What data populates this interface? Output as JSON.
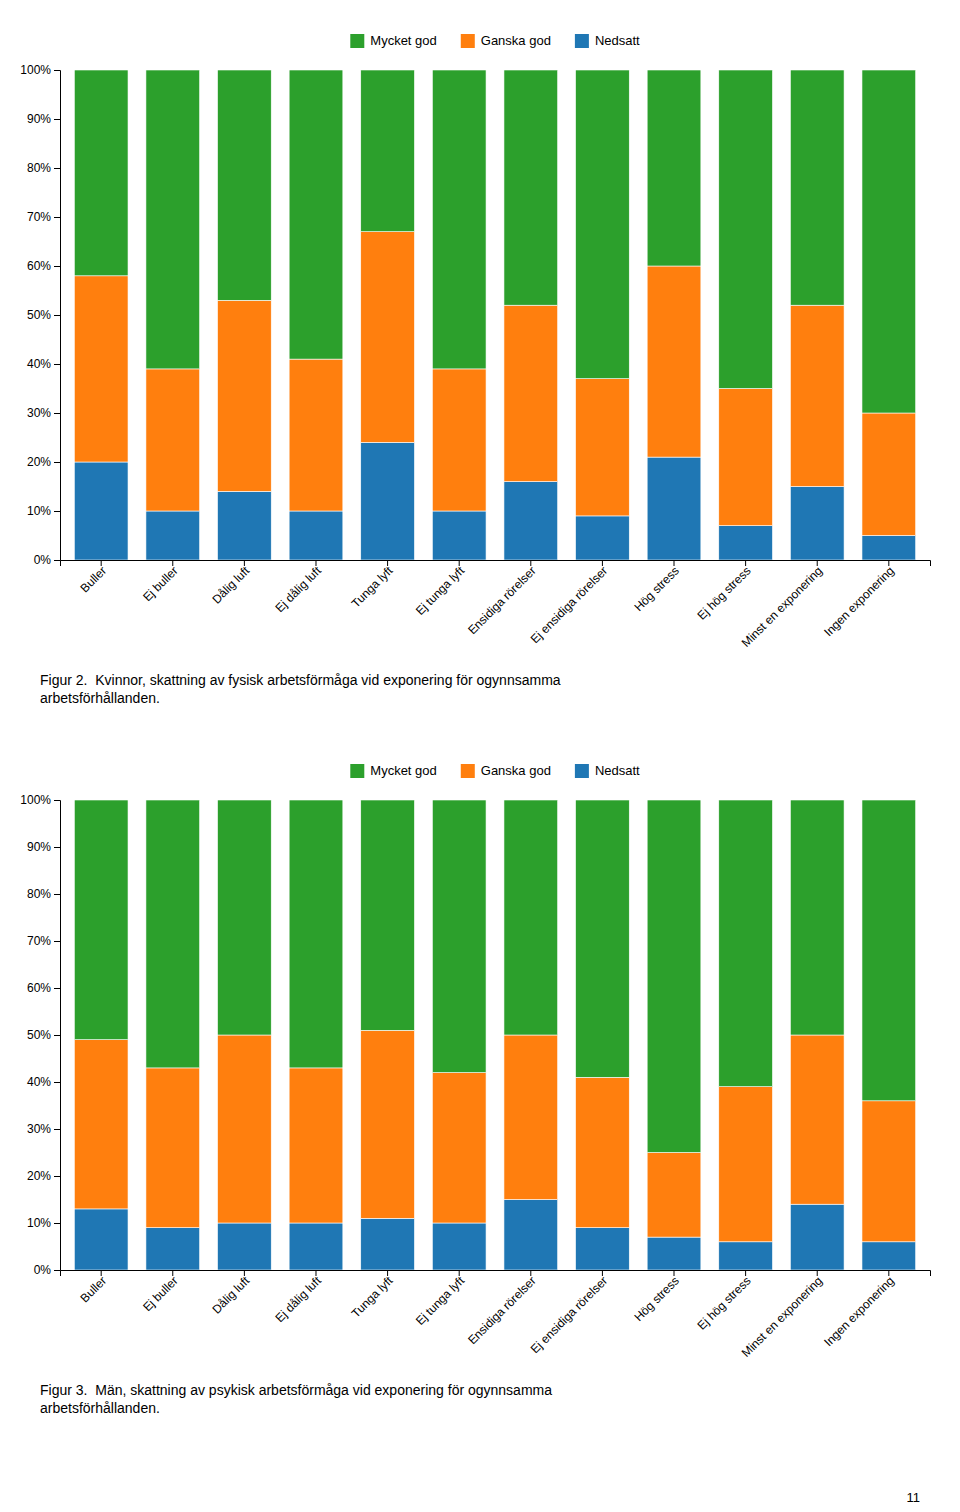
{
  "chart_data": [
    {
      "type": "bar",
      "stacked": true,
      "grid": false,
      "legend": "top",
      "title": "Figur 2.  Kvinnor, skattning av fysisk arbetsförmåga vid exponering för ogynnsamma\narbetsförhållanden.",
      "categories": [
        "Buller",
        "Ej buller",
        "Dålig luft",
        "Ej dålig luft",
        "Tunga lyft",
        "Ej tunga lyft",
        "Ensidiga rörelser",
        "Ej ensidiga rörelser",
        "Hög stress",
        "Ej hög stress",
        "Minst en exponering",
        "Ingen exponering"
      ],
      "series": [
        {
          "name": "Nedsatt",
          "values": [
            20,
            10,
            14,
            10,
            24,
            10,
            16,
            9,
            21,
            7,
            15,
            5
          ]
        },
        {
          "name": "Ganska god",
          "values": [
            38,
            29,
            39,
            31,
            43,
            29,
            36,
            28,
            39,
            28,
            37,
            25
          ]
        },
        {
          "name": "Mycket god",
          "values": [
            42,
            61,
            47,
            59,
            33,
            61,
            48,
            63,
            40,
            65,
            48,
            70
          ]
        }
      ],
      "ylim": [
        0,
        100
      ],
      "yticks": [
        {
          "value": 0,
          "label": "0%"
        },
        {
          "value": 10,
          "label": "10%"
        },
        {
          "value": 20,
          "label": "20%"
        },
        {
          "value": 30,
          "label": "30%"
        },
        {
          "value": 40,
          "label": "40%"
        },
        {
          "value": 50,
          "label": "50%"
        },
        {
          "value": 60,
          "label": "60%"
        },
        {
          "value": 70,
          "label": "70%"
        },
        {
          "value": 80,
          "label": "80%"
        },
        {
          "value": 90,
          "label": "90%"
        },
        {
          "value": 100,
          "label": "100%"
        }
      ]
    },
    {
      "type": "bar",
      "stacked": true,
      "grid": false,
      "legend": "top",
      "title": "Figur 3.  Män, skattning av psykisk arbetsförmåga vid exponering för ogynnsamma\narbetsförhållanden.",
      "categories": [
        "Buller",
        "Ej buller",
        "Dålig luft",
        "Ej dålig luft",
        "Tunga lyft",
        "Ej tunga lyft",
        "Ensidiga rörelser",
        "Ej ensidiga rörelser",
        "Hög stress",
        "Ej hög stress",
        "Minst en exponering",
        "Ingen exponering"
      ],
      "series": [
        {
          "name": "Nedsatt",
          "values": [
            13,
            9,
            10,
            10,
            11,
            10,
            15,
            9,
            7,
            6,
            14,
            6
          ]
        },
        {
          "name": "Ganska god",
          "values": [
            36,
            34,
            40,
            33,
            40,
            32,
            35,
            32,
            18,
            33,
            36,
            30
          ]
        },
        {
          "name": "Mycket god",
          "values": [
            51,
            57,
            50,
            57,
            49,
            58,
            50,
            59,
            75,
            61,
            50,
            64
          ]
        }
      ],
      "ylim": [
        0,
        100
      ],
      "yticks": [
        {
          "value": 0,
          "label": "0%"
        },
        {
          "value": 10,
          "label": "10%"
        },
        {
          "value": 20,
          "label": "20%"
        },
        {
          "value": 30,
          "label": "30%"
        },
        {
          "value": 40,
          "label": "40%"
        },
        {
          "value": 50,
          "label": "50%"
        },
        {
          "value": 60,
          "label": "60%"
        },
        {
          "value": 70,
          "label": "70%"
        },
        {
          "value": 80,
          "label": "80%"
        },
        {
          "value": 90,
          "label": "90%"
        },
        {
          "value": 100,
          "label": "100%"
        }
      ],
      "annotations": [
        "11"
      ]
    }
  ]
}
